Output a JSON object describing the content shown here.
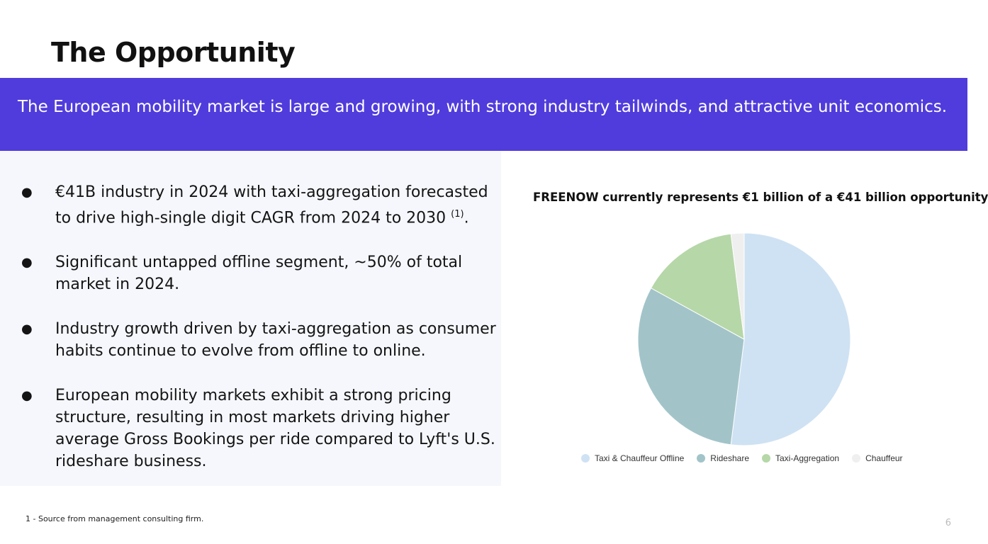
{
  "slide": {
    "title": "The Opportunity",
    "banner": "The European mobility market is large and growing, with strong industry tailwinds, and attractive unit economics.",
    "bullet_symbol": "●",
    "bullets": [
      {
        "text": "€41B industry in 2024 with taxi-aggregation forecasted to drive high-single digit CAGR from 2024 to 2030 ",
        "sup": "(1)",
        "tail": "."
      },
      {
        "text": "Significant untapped offline segment, ~50% of total market in 2024."
      },
      {
        "text": "Industry growth driven by taxi-aggregation as consumer habits continue to evolve from offline to online."
      },
      {
        "text": "European mobility markets exhibit a strong pricing structure, resulting in most markets driving higher average Gross Bookings per ride compared to Lyft's U.S. rideshare business."
      }
    ],
    "footnote": "1 - Source from management consulting firm.",
    "page_number": "6"
  },
  "chart_data": {
    "type": "pie",
    "title": "FREENOW currently represents €1 billion of a €41 billion opportunity",
    "categories": [
      "Taxi & Chauffeur Offline",
      "Rideshare",
      "Taxi-Aggregation",
      "Chauffeur"
    ],
    "values": [
      52,
      31,
      15,
      2
    ],
    "colors": [
      "#cfe2f3",
      "#a2c4c9",
      "#b6d7a8",
      "#efefef"
    ],
    "start_angle_deg": 0,
    "direction": "clockwise",
    "legend_position": "bottom"
  }
}
